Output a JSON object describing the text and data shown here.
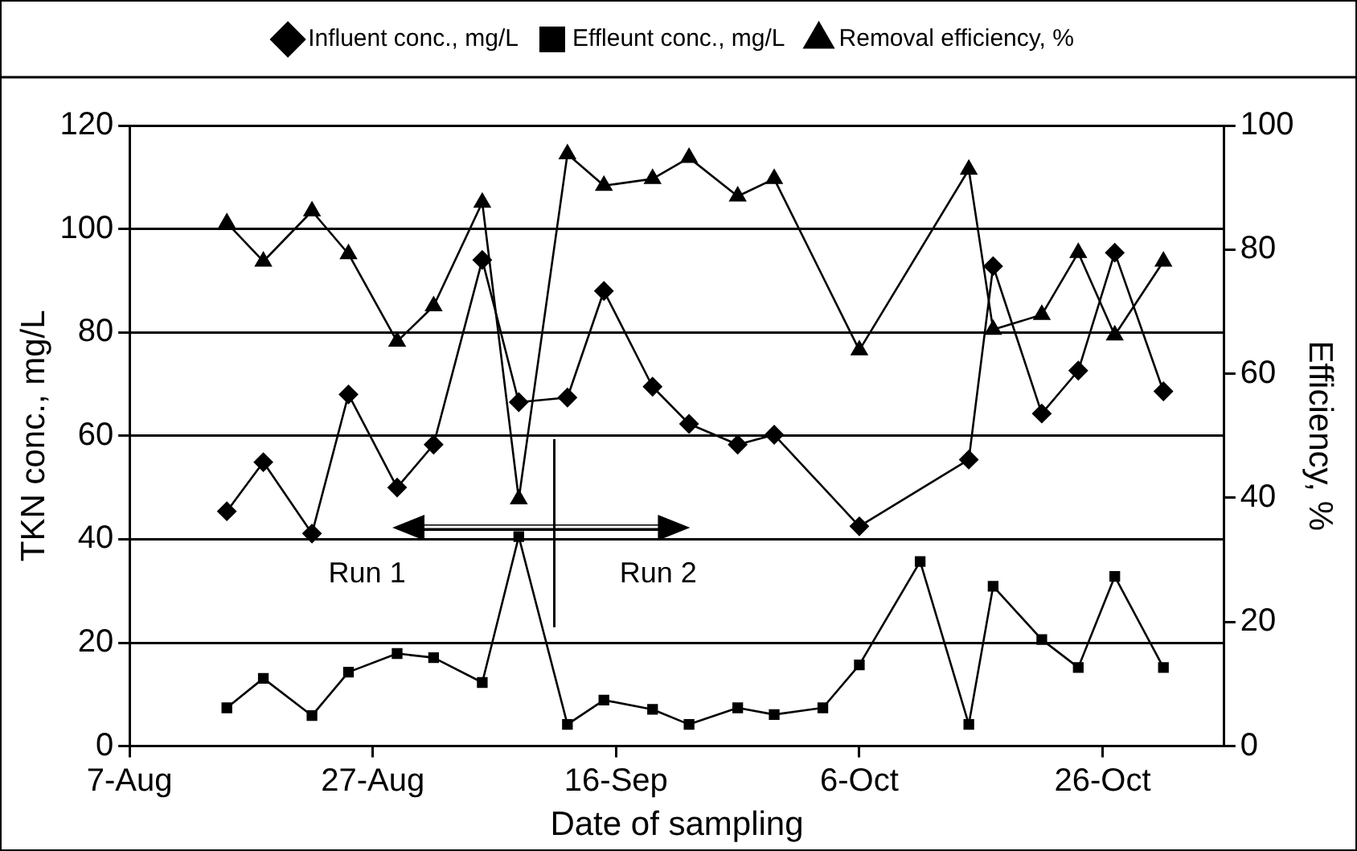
{
  "chart_data": {
    "type": "line",
    "xlabel": "Date of sampling",
    "ylabel": "TKN conc., mg/L",
    "y2label": "Efficiency, %",
    "xlim": [
      "--08-07",
      "--11-05"
    ],
    "xticks": [
      {
        "value": "--08-07",
        "label": "7-Aug"
      },
      {
        "value": "--08-27",
        "label": "27-Aug"
      },
      {
        "value": "--09-16",
        "label": "16-Sep"
      },
      {
        "value": "--10-06",
        "label": "6-Oct"
      },
      {
        "value": "--10-26",
        "label": "26-Oct"
      }
    ],
    "ylim": [
      0,
      120
    ],
    "yticks": [
      0,
      20,
      40,
      60,
      80,
      100,
      120
    ],
    "y2lim": [
      0,
      100
    ],
    "y2ticks": [
      0,
      20,
      40,
      60,
      80,
      100
    ],
    "grid": "y",
    "legend": "top",
    "line_style": "solid",
    "annotations": [
      "Run 1",
      "Run 2"
    ],
    "series": [
      {
        "name": "Influent conc., mg/L",
        "color": "#000000",
        "marker": "diamond",
        "x": [
          "--08-15",
          "--08-18",
          "--08-22",
          "--08-25",
          "--08-29",
          "--09-01",
          "--09-05",
          "--09-08",
          "--09-12",
          "--09-15",
          "--09-19",
          "--09-22",
          "--09-26",
          "--09-29",
          "--10-06",
          "--10-15",
          "--10-17",
          "--10-21",
          "--10-24",
          "--10-27",
          "--10-31"
        ],
        "values": [
          45.4,
          54.9,
          41.1,
          68,
          50,
          58.3,
          94,
          66.5,
          67.4,
          88,
          69.5,
          62.3,
          58.3,
          60.2,
          42.5,
          55.4,
          92.8,
          64.3,
          72.6,
          95.4,
          68.6
        ]
      },
      {
        "name": "Effleunt conc., mg/L",
        "color": "#000000",
        "marker": "square",
        "x": [
          "--08-15",
          "--08-18",
          "--08-22",
          "--08-25",
          "--08-29",
          "--09-01",
          "--09-05",
          "--09-08",
          "--09-12",
          "--09-15",
          "--09-19",
          "--09-22",
          "--09-26",
          "--09-29",
          "--10-03",
          "--10-06",
          "--10-11",
          "--10-15",
          "--10-17",
          "--10-21",
          "--10-24",
          "--10-27",
          "--10-31"
        ],
        "values": [
          7.4,
          13.1,
          5.9,
          14.3,
          17.9,
          17.1,
          12.3,
          40.5,
          4.2,
          8.9,
          7.1,
          4.2,
          7.4,
          6.1,
          7.4,
          15.7,
          35.7,
          4.2,
          30.9,
          20.6,
          15.2,
          32.8,
          15.2
        ]
      },
      {
        "name": "Removal efficiency, %",
        "color": "#000000",
        "marker": "triangle",
        "axis": "y2",
        "x": [
          "--08-15",
          "--08-18",
          "--08-22",
          "--08-25",
          "--08-29",
          "--09-01",
          "--09-05",
          "--09-08",
          "--09-12",
          "--09-15",
          "--09-19",
          "--09-22",
          "--09-26",
          "--09-29",
          "--10-06",
          "--10-15",
          "--10-17",
          "--10-21",
          "--10-24",
          "--10-27",
          "--10-31"
        ],
        "values": [
          84.3,
          78.1,
          86.2,
          79.3,
          65.2,
          70.9,
          87.6,
          39.8,
          95.4,
          90.3,
          91.4,
          94.8,
          88.6,
          91.4,
          63.8,
          92.9,
          67.1,
          69.5,
          79.5,
          66.2,
          78.1
        ]
      }
    ]
  }
}
